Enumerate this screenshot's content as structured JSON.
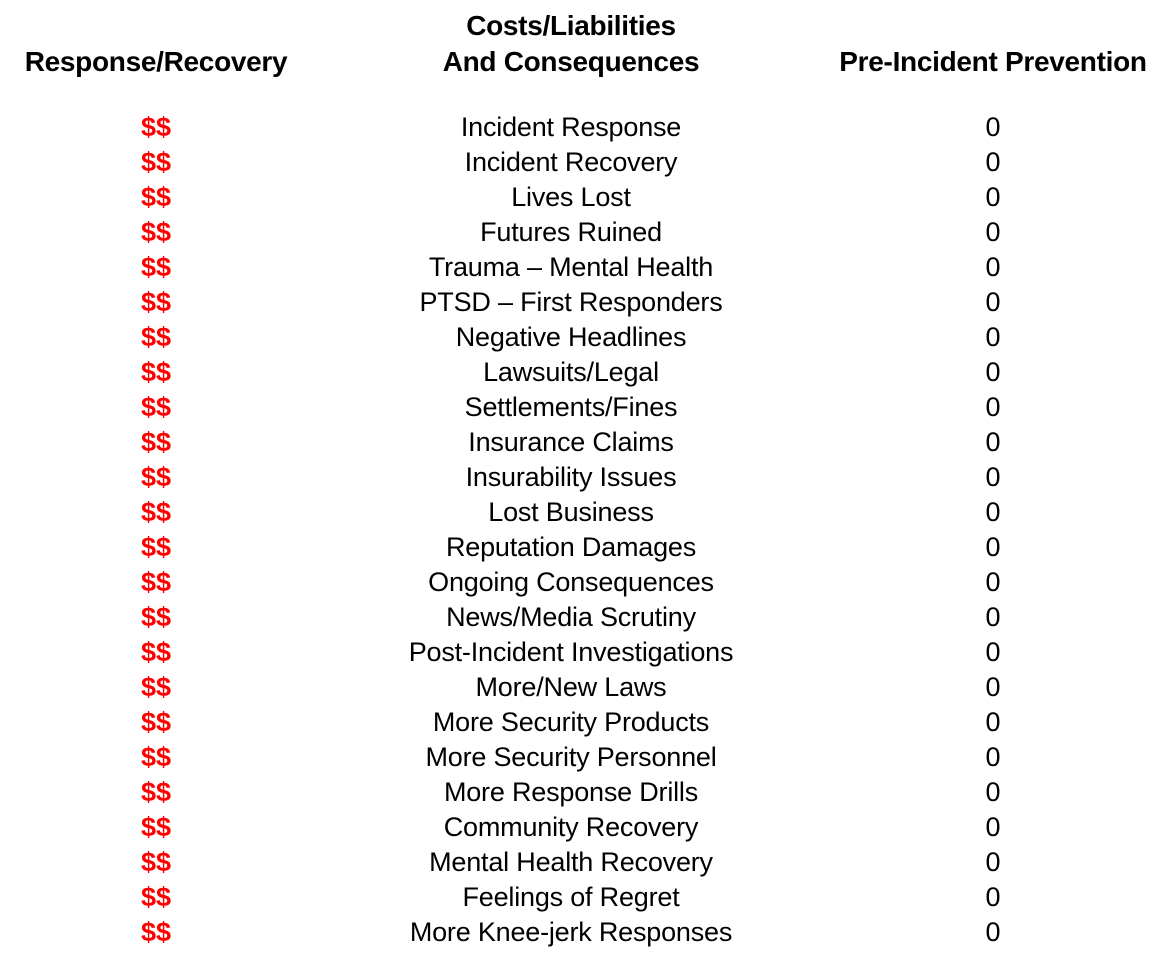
{
  "headers": {
    "col1": "Response/Recovery",
    "col2_line1": "Costs/Liabilities",
    "col2_line2": "And Consequences",
    "col3": "Pre-Incident Prevention"
  },
  "rows": [
    {
      "cost": "$$",
      "item": "Incident Response",
      "prevention": "0"
    },
    {
      "cost": "$$",
      "item": "Incident Recovery",
      "prevention": "0"
    },
    {
      "cost": "$$",
      "item": "Lives Lost",
      "prevention": "0"
    },
    {
      "cost": "$$",
      "item": "Futures Ruined",
      "prevention": "0"
    },
    {
      "cost": "$$",
      "item": "Trauma – Mental Health",
      "prevention": "0"
    },
    {
      "cost": "$$",
      "item": "PTSD – First Responders",
      "prevention": "0"
    },
    {
      "cost": "$$",
      "item": "Negative Headlines",
      "prevention": "0"
    },
    {
      "cost": "$$",
      "item": "Lawsuits/Legal",
      "prevention": "0"
    },
    {
      "cost": "$$",
      "item": "Settlements/Fines",
      "prevention": "0"
    },
    {
      "cost": "$$",
      "item": "Insurance Claims",
      "prevention": "0"
    },
    {
      "cost": "$$",
      "item": "Insurability Issues",
      "prevention": "0"
    },
    {
      "cost": "$$",
      "item": "Lost Business",
      "prevention": "0"
    },
    {
      "cost": "$$",
      "item": "Reputation Damages",
      "prevention": "0"
    },
    {
      "cost": "$$",
      "item": "Ongoing Consequences",
      "prevention": "0"
    },
    {
      "cost": "$$",
      "item": "News/Media Scrutiny",
      "prevention": "0"
    },
    {
      "cost": "$$",
      "item": "Post-Incident Investigations",
      "prevention": "0"
    },
    {
      "cost": "$$",
      "item": "More/New Laws",
      "prevention": "0"
    },
    {
      "cost": "$$",
      "item": "More Security Products",
      "prevention": "0"
    },
    {
      "cost": "$$",
      "item": "More Security Personnel",
      "prevention": "0"
    },
    {
      "cost": "$$",
      "item": "More Response Drills",
      "prevention": "0"
    },
    {
      "cost": "$$",
      "item": "Community Recovery",
      "prevention": "0"
    },
    {
      "cost": "$$",
      "item": "Mental Health Recovery",
      "prevention": "0"
    },
    {
      "cost": "$$",
      "item": "Feelings of Regret",
      "prevention": "0"
    },
    {
      "cost": "$$",
      "item": "More Knee-jerk Responses",
      "prevention": "0"
    }
  ],
  "colors": {
    "cost_symbol": "#FF0000",
    "text": "#000000",
    "background": "#FFFFFF"
  }
}
